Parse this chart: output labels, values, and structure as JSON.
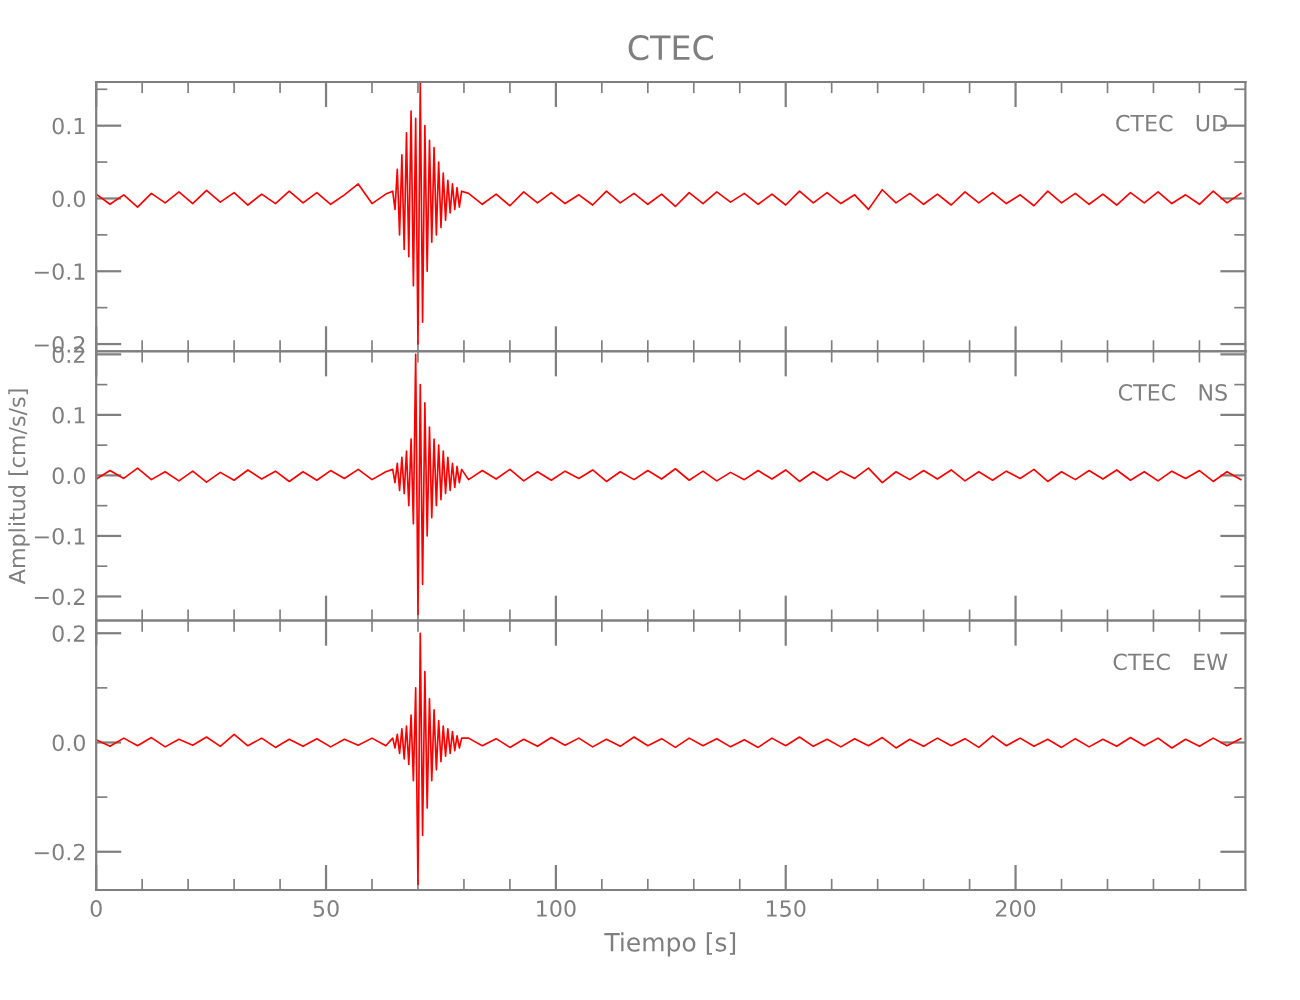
{
  "chart_data": [
    {
      "type": "line",
      "title": "CTEC",
      "annotations": [
        "CTEC   UD"
      ],
      "tick_labels": "y",
      "x": [
        0,
        3,
        6,
        9,
        12,
        15,
        18,
        21,
        24,
        27,
        30,
        33,
        36,
        39,
        42,
        45,
        48,
        51,
        54,
        57,
        60,
        63,
        64.5,
        65,
        65.5,
        66,
        66.5,
        67,
        67.5,
        68,
        68.5,
        69,
        69.5,
        70,
        70.5,
        71,
        71.5,
        72,
        72.5,
        73,
        73.5,
        74,
        74.5,
        75,
        75.5,
        76,
        76.5,
        77,
        77.5,
        78,
        78.5,
        79,
        79.5,
        81,
        84,
        87,
        90,
        93,
        96,
        99,
        102,
        105,
        108,
        111,
        114,
        117,
        120,
        123,
        126,
        129,
        132,
        135,
        138,
        141,
        144,
        147,
        150,
        153,
        156,
        159,
        162,
        165,
        168,
        171,
        174,
        177,
        180,
        183,
        186,
        189,
        192,
        195,
        198,
        201,
        204,
        207,
        210,
        213,
        216,
        219,
        222,
        225,
        228,
        231,
        234,
        237,
        240,
        243,
        246,
        249
      ],
      "series": [
        {
          "color": "#ff0000",
          "values": [
            0.006,
            -0.008,
            0.005,
            -0.012,
            0.007,
            -0.006,
            0.009,
            -0.007,
            0.011,
            -0.005,
            0.008,
            -0.009,
            0.006,
            -0.007,
            0.01,
            -0.006,
            0.008,
            -0.008,
            0.005,
            0.02,
            -0.007,
            0.006,
            0.01,
            -0.015,
            0.04,
            -0.05,
            0.06,
            -0.07,
            0.09,
            -0.08,
            0.12,
            -0.12,
            0.11,
            -0.2,
            0.16,
            -0.17,
            0.1,
            -0.1,
            0.08,
            -0.06,
            0.07,
            -0.05,
            0.05,
            -0.04,
            0.035,
            -0.03,
            0.025,
            -0.02,
            0.02,
            -0.015,
            0.015,
            -0.012,
            0.01,
            0.007,
            -0.008,
            0.006,
            -0.01,
            0.009,
            -0.006,
            0.008,
            -0.007,
            0.005,
            -0.009,
            0.01,
            -0.006,
            0.007,
            -0.008,
            0.006,
            -0.011,
            0.008,
            -0.007,
            0.009,
            -0.005,
            0.007,
            -0.008,
            0.006,
            -0.009,
            0.01,
            -0.006,
            0.008,
            -0.007,
            0.005,
            -0.015,
            0.012,
            -0.006,
            0.007,
            -0.008,
            0.006,
            -0.009,
            0.009,
            -0.006,
            0.008,
            -0.007,
            0.005,
            -0.01,
            0.01,
            -0.006,
            0.007,
            -0.008,
            0.006,
            -0.009,
            0.008,
            -0.006,
            0.009,
            -0.007,
            0.005,
            -0.008,
            0.01,
            -0.006,
            0.007
          ]
        }
      ],
      "xlim": [
        0,
        250
      ],
      "xticks": [
        0,
        {
          "value": 10,
          "label": null
        },
        {
          "value": 20,
          "label": null
        },
        {
          "value": 30,
          "label": null
        },
        {
          "value": 40,
          "label": null
        },
        50,
        {
          "value": 60,
          "label": null
        },
        {
          "value": 70,
          "label": null
        },
        {
          "value": 80,
          "label": null
        },
        {
          "value": 90,
          "label": null
        },
        100,
        {
          "value": 110,
          "label": null
        },
        {
          "value": 120,
          "label": null
        },
        {
          "value": 130,
          "label": null
        },
        {
          "value": 140,
          "label": null
        },
        150,
        {
          "value": 160,
          "label": null
        },
        {
          "value": 170,
          "label": null
        },
        {
          "value": 180,
          "label": null
        },
        {
          "value": 190,
          "label": null
        },
        200,
        {
          "value": 210,
          "label": null
        },
        {
          "value": 220,
          "label": null
        },
        {
          "value": 230,
          "label": null
        },
        {
          "value": 240,
          "label": null
        }
      ],
      "ylim": [
        -0.21,
        0.16
      ],
      "yticks": [
        {
          "value": -0.2,
          "label": "−0.2"
        },
        {
          "value": -0.15,
          "label": null
        },
        {
          "value": -0.1,
          "label": "−0.1"
        },
        {
          "value": -0.05,
          "label": null
        },
        {
          "value": 0,
          "label": "0.0"
        },
        {
          "value": 0.05,
          "label": null
        },
        {
          "value": 0.1,
          "label": "0.1"
        },
        {
          "value": 0.15,
          "label": null
        }
      ]
    },
    {
      "type": "line",
      "ylabel": "Amplitud [cm/s/s]",
      "annotations": [
        "CTEC   NS"
      ],
      "tick_labels": "y",
      "x": [
        0,
        3,
        6,
        9,
        12,
        15,
        18,
        21,
        24,
        27,
        30,
        33,
        36,
        39,
        42,
        45,
        48,
        51,
        54,
        57,
        60,
        63,
        64.5,
        65,
        65.5,
        66,
        66.5,
        67,
        67.5,
        68,
        68.5,
        69,
        69.5,
        70,
        70.5,
        71,
        71.5,
        72,
        72.5,
        73,
        73.5,
        74,
        74.5,
        75,
        75.5,
        76,
        76.5,
        77,
        77.5,
        78,
        78.5,
        79,
        79.5,
        81,
        84,
        87,
        90,
        93,
        96,
        99,
        102,
        105,
        108,
        111,
        114,
        117,
        120,
        123,
        126,
        129,
        132,
        135,
        138,
        141,
        144,
        147,
        150,
        153,
        156,
        159,
        162,
        165,
        168,
        171,
        174,
        177,
        180,
        183,
        186,
        189,
        192,
        195,
        198,
        201,
        204,
        207,
        210,
        213,
        216,
        219,
        222,
        225,
        228,
        231,
        234,
        237,
        240,
        243,
        246,
        249
      ],
      "series": [
        {
          "color": "#ff0000",
          "values": [
            -0.006,
            0.008,
            -0.005,
            0.012,
            -0.007,
            0.006,
            -0.009,
            0.007,
            -0.011,
            0.005,
            -0.008,
            0.009,
            -0.006,
            0.007,
            -0.01,
            0.006,
            -0.008,
            0.008,
            -0.005,
            0.01,
            -0.007,
            0.006,
            0.01,
            -0.012,
            0.02,
            -0.025,
            0.03,
            -0.03,
            0.04,
            -0.05,
            0.06,
            -0.08,
            0.2,
            -0.23,
            0.15,
            -0.18,
            0.12,
            -0.1,
            0.08,
            -0.07,
            0.06,
            -0.05,
            0.05,
            -0.04,
            0.04,
            -0.03,
            0.03,
            -0.025,
            0.02,
            -0.02,
            0.015,
            -0.012,
            0.01,
            -0.007,
            0.008,
            -0.006,
            0.01,
            -0.009,
            0.006,
            -0.008,
            0.007,
            -0.005,
            0.009,
            -0.01,
            0.006,
            -0.007,
            0.008,
            -0.006,
            0.011,
            -0.008,
            0.007,
            -0.009,
            0.005,
            -0.007,
            0.008,
            -0.006,
            0.009,
            -0.01,
            0.006,
            -0.008,
            0.007,
            -0.005,
            0.012,
            -0.012,
            0.006,
            -0.007,
            0.008,
            -0.006,
            0.009,
            -0.009,
            0.006,
            -0.008,
            0.007,
            -0.005,
            0.01,
            -0.01,
            0.006,
            -0.007,
            0.008,
            -0.006,
            0.009,
            -0.008,
            0.006,
            -0.009,
            0.007,
            -0.005,
            0.008,
            -0.01,
            0.006,
            -0.007
          ]
        }
      ],
      "xlim": [
        0,
        250
      ],
      "xticks": [
        0,
        {
          "value": 10,
          "label": null
        },
        {
          "value": 20,
          "label": null
        },
        {
          "value": 30,
          "label": null
        },
        {
          "value": 40,
          "label": null
        },
        50,
        {
          "value": 60,
          "label": null
        },
        {
          "value": 70,
          "label": null
        },
        {
          "value": 80,
          "label": null
        },
        {
          "value": 90,
          "label": null
        },
        100,
        {
          "value": 110,
          "label": null
        },
        {
          "value": 120,
          "label": null
        },
        {
          "value": 130,
          "label": null
        },
        {
          "value": 140,
          "label": null
        },
        150,
        {
          "value": 160,
          "label": null
        },
        {
          "value": 170,
          "label": null
        },
        {
          "value": 180,
          "label": null
        },
        {
          "value": 190,
          "label": null
        },
        200,
        {
          "value": 210,
          "label": null
        },
        {
          "value": 220,
          "label": null
        },
        {
          "value": 230,
          "label": null
        },
        {
          "value": 240,
          "label": null
        }
      ],
      "ylim": [
        -0.24,
        0.205
      ],
      "yticks": [
        {
          "value": -0.2,
          "label": "−0.2"
        },
        {
          "value": -0.15,
          "label": null
        },
        {
          "value": -0.1,
          "label": "−0.1"
        },
        {
          "value": -0.05,
          "label": null
        },
        {
          "value": 0,
          "label": "0.0"
        },
        {
          "value": 0.05,
          "label": null
        },
        {
          "value": 0.1,
          "label": "0.1"
        },
        {
          "value": 0.15,
          "label": null
        },
        {
          "value": 0.2,
          "label": "0.2"
        }
      ]
    },
    {
      "type": "line",
      "xlabel": "Tiempo [s]",
      "annotations": [
        "CTEC   EW"
      ],
      "x": [
        0,
        3,
        6,
        9,
        12,
        15,
        18,
        21,
        24,
        27,
        30,
        33,
        36,
        39,
        42,
        45,
        48,
        51,
        54,
        57,
        60,
        63,
        64.5,
        65,
        65.5,
        66,
        66.5,
        67,
        67.5,
        68,
        68.5,
        69,
        69.5,
        70,
        70.5,
        71,
        71.5,
        72,
        72.5,
        73,
        73.5,
        74,
        74.5,
        75,
        75.5,
        76,
        76.5,
        77,
        77.5,
        78,
        78.5,
        79,
        79.5,
        81,
        84,
        87,
        90,
        93,
        96,
        99,
        102,
        105,
        108,
        111,
        114,
        117,
        120,
        123,
        126,
        129,
        132,
        135,
        138,
        141,
        144,
        147,
        150,
        153,
        156,
        159,
        162,
        165,
        168,
        171,
        174,
        177,
        180,
        183,
        186,
        189,
        192,
        195,
        198,
        201,
        204,
        207,
        210,
        213,
        216,
        219,
        222,
        225,
        228,
        231,
        234,
        237,
        240,
        243,
        246,
        249
      ],
      "series": [
        {
          "color": "#ff0000",
          "values": [
            0.005,
            -0.007,
            0.008,
            -0.006,
            0.009,
            -0.008,
            0.006,
            -0.005,
            0.01,
            -0.007,
            0.015,
            -0.006,
            0.008,
            -0.009,
            0.006,
            -0.007,
            0.007,
            -0.008,
            0.006,
            -0.005,
            0.008,
            -0.006,
            0.008,
            -0.01,
            0.015,
            -0.02,
            0.025,
            -0.03,
            0.03,
            -0.04,
            0.05,
            -0.07,
            0.1,
            -0.26,
            0.2,
            -0.17,
            0.13,
            -0.12,
            0.08,
            -0.07,
            0.06,
            -0.05,
            0.04,
            -0.035,
            0.03,
            -0.025,
            0.025,
            -0.02,
            0.02,
            -0.015,
            0.012,
            -0.01,
            0.008,
            0.008,
            -0.006,
            0.007,
            -0.009,
            0.006,
            -0.007,
            0.009,
            -0.005,
            0.008,
            -0.008,
            0.006,
            -0.007,
            0.01,
            -0.006,
            0.007,
            -0.009,
            0.008,
            -0.006,
            0.007,
            -0.008,
            0.005,
            -0.009,
            0.008,
            -0.006,
            0.01,
            -0.007,
            0.006,
            -0.008,
            0.007,
            -0.006,
            0.009,
            -0.01,
            0.006,
            -0.007,
            0.008,
            -0.006,
            0.007,
            -0.009,
            0.012,
            -0.006,
            0.008,
            -0.007,
            0.006,
            -0.009,
            0.007,
            -0.008,
            0.006,
            -0.007,
            0.009,
            -0.006,
            0.008,
            -0.01,
            0.006,
            -0.007,
            0.008,
            -0.006,
            0.007
          ]
        }
      ],
      "xlim": [
        0,
        250
      ],
      "xticks": [
        0,
        {
          "value": 10,
          "label": null
        },
        {
          "value": 20,
          "label": null
        },
        {
          "value": 30,
          "label": null
        },
        {
          "value": 40,
          "label": null
        },
        50,
        {
          "value": 60,
          "label": null
        },
        {
          "value": 70,
          "label": null
        },
        {
          "value": 80,
          "label": null
        },
        {
          "value": 90,
          "label": null
        },
        100,
        {
          "value": 110,
          "label": null
        },
        {
          "value": 120,
          "label": null
        },
        {
          "value": 130,
          "label": null
        },
        {
          "value": 140,
          "label": null
        },
        150,
        {
          "value": 160,
          "label": null
        },
        {
          "value": 170,
          "label": null
        },
        {
          "value": 180,
          "label": null
        },
        {
          "value": 190,
          "label": null
        },
        200,
        {
          "value": 210,
          "label": null
        },
        {
          "value": 220,
          "label": null
        },
        {
          "value": 230,
          "label": null
        },
        {
          "value": 240,
          "label": null
        }
      ],
      "ylim": [
        -0.27,
        0.223
      ],
      "yticks": [
        {
          "value": -0.2,
          "label": "−0.2"
        },
        {
          "value": -0.1,
          "label": null
        },
        {
          "value": 0,
          "label": "0.0"
        },
        {
          "value": 0.1,
          "label": null
        },
        {
          "value": 0.2,
          "label": "0.2"
        }
      ]
    }
  ]
}
